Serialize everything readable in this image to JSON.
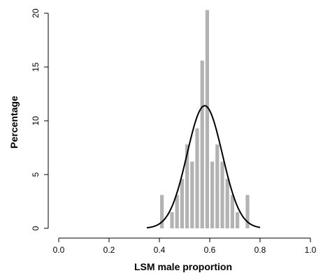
{
  "chart_data": {
    "type": "bar",
    "xlabel": "LSM male proportion",
    "ylabel": "Percentage",
    "xlim": [
      0.0,
      1.0
    ],
    "ylim": [
      0,
      20
    ],
    "x_ticks": [
      "0.0",
      "0.2",
      "0.4",
      "0.6",
      "0.8",
      "1.0"
    ],
    "y_ticks": [
      "0",
      "5",
      "10",
      "15",
      "20"
    ],
    "bin_width": 0.02,
    "bins": [
      {
        "x0": 0.4,
        "x1": 0.42,
        "value": 3.1
      },
      {
        "x0": 0.44,
        "x1": 0.46,
        "value": 1.5
      },
      {
        "x0": 0.46,
        "x1": 0.48,
        "value": 3.1
      },
      {
        "x0": 0.48,
        "x1": 0.5,
        "value": 4.6
      },
      {
        "x0": 0.5,
        "x1": 0.52,
        "value": 7.8
      },
      {
        "x0": 0.52,
        "x1": 0.54,
        "value": 6.2
      },
      {
        "x0": 0.54,
        "x1": 0.56,
        "value": 9.3
      },
      {
        "x0": 0.56,
        "x1": 0.58,
        "value": 15.6
      },
      {
        "x0": 0.58,
        "x1": 0.6,
        "value": 20.3
      },
      {
        "x0": 0.6,
        "x1": 0.62,
        "value": 6.2
      },
      {
        "x0": 0.62,
        "x1": 0.64,
        "value": 7.8
      },
      {
        "x0": 0.64,
        "x1": 0.66,
        "value": 6.2
      },
      {
        "x0": 0.66,
        "x1": 0.68,
        "value": 4.6
      },
      {
        "x0": 0.68,
        "x1": 0.7,
        "value": 3.1
      },
      {
        "x0": 0.7,
        "x1": 0.72,
        "value": 1.5
      },
      {
        "x0": 0.74,
        "x1": 0.76,
        "value": 3.1
      }
    ],
    "normal_curve": {
      "mean": 0.58,
      "sd": 0.07,
      "peak": 11.4,
      "x_range": [
        0.35,
        0.8
      ]
    },
    "bar_color": "#b3b3b3",
    "curve_color": "#000000",
    "grid": false,
    "legend": "none"
  }
}
